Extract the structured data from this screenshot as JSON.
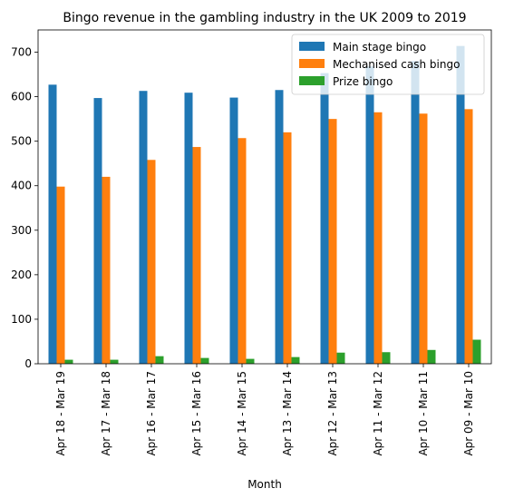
{
  "chart_data": {
    "type": "bar",
    "title": "Bingo revenue in the gambling industry in the UK 2009 to 2019",
    "xlabel": "Month",
    "ylabel": "",
    "ylim": [
      0,
      750
    ],
    "yticks": [
      0,
      100,
      200,
      300,
      400,
      500,
      600,
      700
    ],
    "grid": false,
    "legend_position": "top-right",
    "categories": [
      "Apr 18 - Mar 19",
      "Apr 17 - Mar 18",
      "Apr 16 - Mar 17",
      "Apr 15 - Mar 16",
      "Apr 14 - Mar 15",
      "Apr 13 - Mar 14",
      "Apr 12 - Mar 13",
      "Apr 11 - Mar 12",
      "Apr 10 - Mar 11",
      "Apr 09 - Mar 10"
    ],
    "series": [
      {
        "name": "Main stage bingo",
        "color": "#1f77b4",
        "values": [
          627,
          597,
          613,
          609,
          598,
          615,
          653,
          668,
          680,
          714
        ]
      },
      {
        "name": "Mechanised cash bingo",
        "color": "#ff7f0e",
        "values": [
          398,
          420,
          458,
          487,
          507,
          520,
          550,
          565,
          562,
          572
        ]
      },
      {
        "name": "Prize bingo",
        "color": "#2ca02c",
        "values": [
          9,
          9,
          17,
          13,
          11,
          15,
          25,
          26,
          31,
          54
        ]
      }
    ]
  }
}
